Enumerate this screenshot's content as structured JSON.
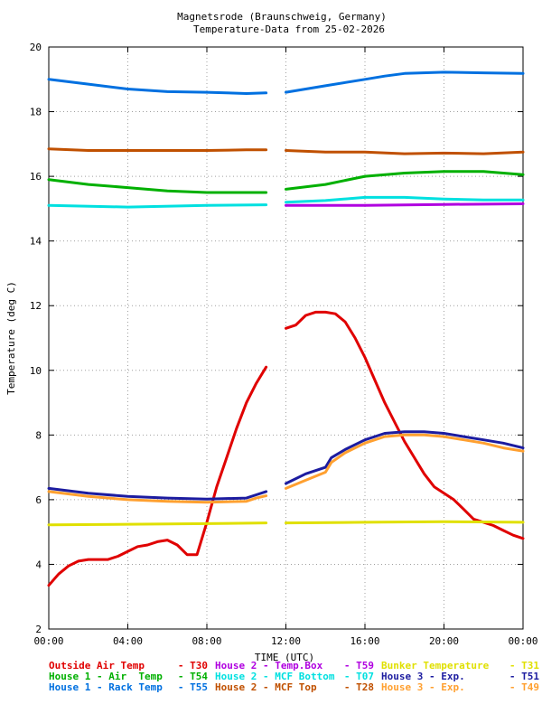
{
  "chart_data": {
    "type": "line",
    "title": "Magnetsrode (Braunschweig, Germany)",
    "subtitle": "Temperature-Data from 25-02-2026",
    "xlabel": "TIME (UTC)",
    "ylabel": "Temperature (deg C)",
    "xlim": [
      0,
      24
    ],
    "ylim": [
      2,
      20
    ],
    "x_ticks": [
      "00:00",
      "04:00",
      "08:00",
      "12:00",
      "16:00",
      "20:00",
      "00:00"
    ],
    "y_ticks": [
      "2",
      "4",
      "6",
      "8",
      "10",
      "12",
      "14",
      "16",
      "18",
      "20"
    ],
    "grid": true,
    "legend_position": "bottom",
    "series": [
      {
        "name": "Outside Air Temp",
        "code": "T30",
        "color": "#e00000",
        "x": [
          0,
          0.5,
          1,
          1.5,
          2,
          3,
          3.5,
          4,
          4.5,
          5,
          5.5,
          6,
          6.5,
          7,
          7.5,
          8,
          8.5,
          9,
          9.5,
          10,
          10.5,
          11
        ],
        "y": [
          3.35,
          3.7,
          3.95,
          4.1,
          4.15,
          4.15,
          4.25,
          4.4,
          4.55,
          4.6,
          4.7,
          4.75,
          4.6,
          4.3,
          4.3,
          5.3,
          6.4,
          7.3,
          8.2,
          9.0,
          9.6,
          10.1
        ]
      },
      {
        "name": "Outside Air Temp",
        "code": "T30",
        "color": "#e00000",
        "x": [
          12,
          12.5,
          13,
          13.5,
          14,
          14.5,
          15,
          15.5,
          16,
          16.5,
          17,
          17.5,
          18,
          18.5,
          19,
          19.5,
          20,
          20.5,
          21,
          21.5,
          22,
          22.5,
          23,
          23.5,
          24
        ],
        "y": [
          11.3,
          11.4,
          11.7,
          11.8,
          11.8,
          11.75,
          11.5,
          11.0,
          10.4,
          9.7,
          9.0,
          8.4,
          7.8,
          7.3,
          6.8,
          6.4,
          6.2,
          6.0,
          5.7,
          5.4,
          5.3,
          5.2,
          5.05,
          4.9,
          4.8
        ]
      },
      {
        "name": "House 1 - Air  Temp",
        "code": "T54",
        "color": "#00b000",
        "x": [
          0,
          2,
          4,
          6,
          8,
          10,
          11
        ],
        "y": [
          15.9,
          15.75,
          15.65,
          15.55,
          15.5,
          15.5,
          15.5
        ]
      },
      {
        "name": "House 1 - Air  Temp",
        "code": "T54",
        "color": "#00b000",
        "x": [
          12,
          14,
          16,
          18,
          20,
          22,
          24
        ],
        "y": [
          15.6,
          15.75,
          16.0,
          16.1,
          16.15,
          16.15,
          16.05
        ]
      },
      {
        "name": "House 1 - Rack Temp",
        "code": "T55",
        "color": "#0070e0",
        "x": [
          0,
          2,
          4,
          6,
          8,
          10,
          11
        ],
        "y": [
          19.0,
          18.85,
          18.7,
          18.62,
          18.6,
          18.56,
          18.58
        ]
      },
      {
        "name": "House 1 - Rack Temp",
        "code": "T55",
        "color": "#0070e0",
        "x": [
          12,
          14,
          16,
          17,
          18,
          20,
          22,
          24
        ],
        "y": [
          18.6,
          18.8,
          19.0,
          19.1,
          19.18,
          19.22,
          19.2,
          19.18
        ]
      },
      {
        "name": "House 2 - Temp.Box",
        "code": "T59",
        "color": "#b000e0",
        "x": [
          12,
          16,
          20,
          24
        ],
        "y": [
          15.1,
          15.1,
          15.13,
          15.15
        ]
      },
      {
        "name": "House 2 - MCF Bottom",
        "code": "T07",
        "color": "#00e0e0",
        "x": [
          0,
          4,
          8,
          11
        ],
        "y": [
          15.1,
          15.05,
          15.1,
          15.12
        ]
      },
      {
        "name": "House 2 - MCF Bottom",
        "code": "T07",
        "color": "#00e0e0",
        "x": [
          12,
          14,
          16,
          18,
          20,
          22,
          24
        ],
        "y": [
          15.2,
          15.25,
          15.35,
          15.35,
          15.3,
          15.27,
          15.27
        ]
      },
      {
        "name": "House 2 - MCF Top",
        "code": "T28",
        "color": "#c05000",
        "x": [
          0,
          2,
          4,
          6,
          8,
          10,
          11
        ],
        "y": [
          16.85,
          16.8,
          16.8,
          16.8,
          16.8,
          16.82,
          16.82
        ]
      },
      {
        "name": "House 2 - MCF Top",
        "code": "T28",
        "color": "#c05000",
        "x": [
          12,
          14,
          16,
          18,
          20,
          22,
          24
        ],
        "y": [
          16.8,
          16.75,
          16.75,
          16.7,
          16.72,
          16.7,
          16.75
        ]
      },
      {
        "name": "Bunker Temperature",
        "code": "T31",
        "color": "#e0e000",
        "x": [
          0,
          4,
          8,
          11
        ],
        "y": [
          5.22,
          5.24,
          5.26,
          5.28
        ]
      },
      {
        "name": "Bunker Temperature",
        "code": "T31",
        "color": "#e0e000",
        "x": [
          12,
          16,
          20,
          24
        ],
        "y": [
          5.28,
          5.3,
          5.32,
          5.3
        ]
      },
      {
        "name": "House 3 - Exp.",
        "code": "T51",
        "color": "#1c1ca0",
        "x": [
          0,
          2,
          4,
          6,
          8,
          10,
          10.5,
          11
        ],
        "y": [
          6.35,
          6.2,
          6.1,
          6.05,
          6.02,
          6.05,
          6.15,
          6.25
        ]
      },
      {
        "name": "House 3 - Exp.",
        "code": "T51",
        "color": "#1c1ca0",
        "x": [
          12,
          13,
          14,
          14.3,
          15,
          16,
          17,
          18,
          19,
          20,
          21,
          22,
          23,
          24
        ],
        "y": [
          6.5,
          6.8,
          7.0,
          7.3,
          7.55,
          7.85,
          8.05,
          8.1,
          8.1,
          8.05,
          7.95,
          7.85,
          7.75,
          7.6
        ]
      },
      {
        "name": "House 3 - Exp.",
        "code": "T49",
        "color": "#ffa030",
        "x": [
          0,
          2,
          4,
          6,
          8,
          10,
          10.5,
          11
        ],
        "y": [
          6.25,
          6.1,
          6.0,
          5.95,
          5.92,
          5.95,
          6.05,
          6.12
        ]
      },
      {
        "name": "House 3 - Exp.",
        "code": "T49",
        "color": "#ffa030",
        "x": [
          12,
          13,
          14,
          14.3,
          15,
          16,
          17,
          18,
          19,
          20,
          21,
          22,
          23,
          24
        ],
        "y": [
          6.35,
          6.6,
          6.85,
          7.15,
          7.45,
          7.75,
          7.95,
          8.0,
          8.0,
          7.95,
          7.85,
          7.75,
          7.6,
          7.5
        ]
      }
    ],
    "legend": [
      {
        "label": "Outside Air Temp",
        "code": "T30",
        "color": "#e00000"
      },
      {
        "label": "House 2 - Temp.Box",
        "code": "T59",
        "color": "#b000e0"
      },
      {
        "label": "Bunker Temperature",
        "code": "T31",
        "color": "#e0e000"
      },
      {
        "label": "House 1 - Air  Temp",
        "code": "T54",
        "color": "#00b000"
      },
      {
        "label": "House 2 - MCF Bottom",
        "code": "T07",
        "color": "#00e0e0"
      },
      {
        "label": "House 3 - Exp.",
        "code": "T51",
        "color": "#1c1ca0"
      },
      {
        "label": "House 1 - Rack Temp",
        "code": "T55",
        "color": "#0070e0"
      },
      {
        "label": "House 2 - MCF Top",
        "code": "T28",
        "color": "#c05000"
      },
      {
        "label": "House 3 - Exp.",
        "code": "T49",
        "color": "#ffa030"
      }
    ]
  }
}
